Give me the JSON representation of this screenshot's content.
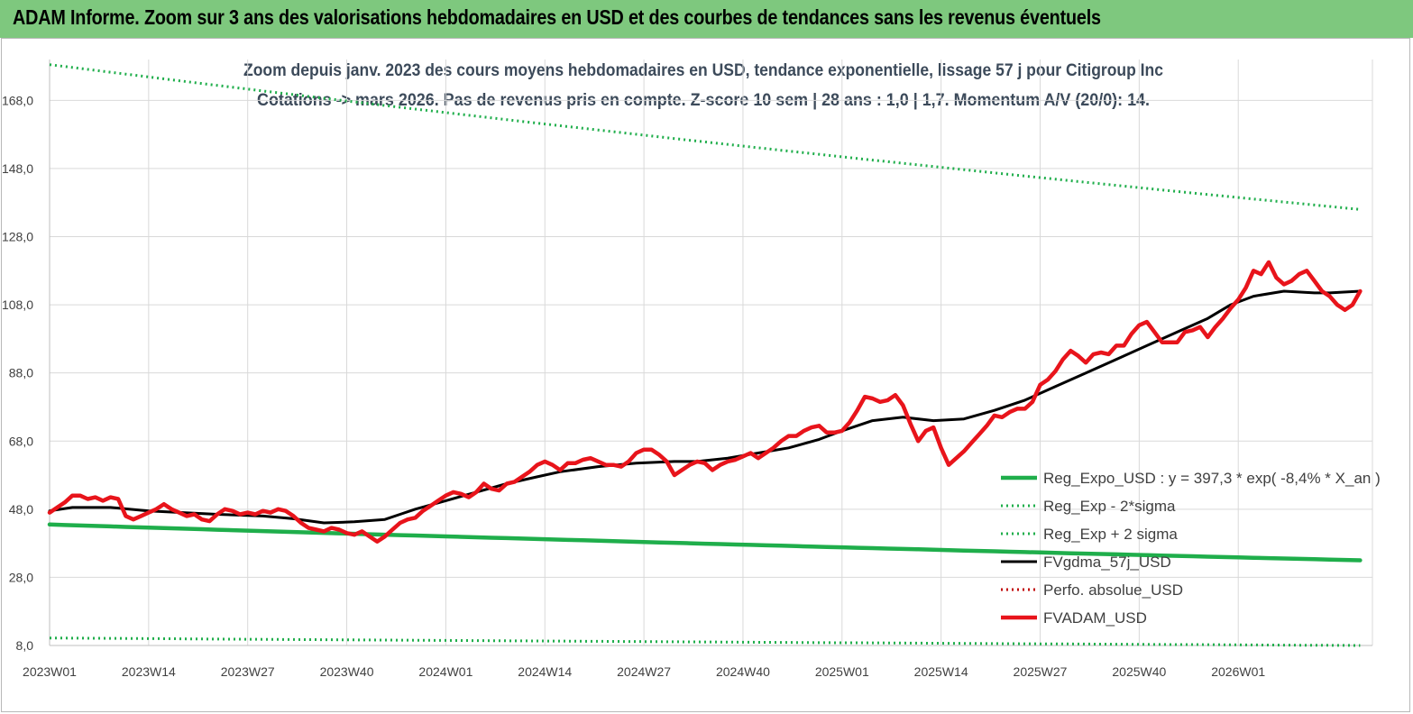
{
  "header": {
    "title": "ADAM Informe. Zoom sur 3 ans des valorisations hebdomadaires en USD et des courbes de tendances sans les revenus éventuels"
  },
  "chart_data": {
    "type": "line",
    "title_line1": "Zoom depuis janv. 2023 des cours moyens hebdomadaires en USD, tendance exponentielle, lissage 57 j pour Citigroup Inc",
    "title_line2": "Cotations -> mars 2026. Pas de revenus pris en compte. Z-score 10 sem | 28 ans : 1,0 | 1,7. Momentum A/V (20/0): 14.",
    "ylim": [
      8,
      180
    ],
    "yticks": [
      8,
      28,
      48,
      68,
      88,
      108,
      128,
      148,
      168
    ],
    "ytick_labels": [
      "8,0",
      "28,0",
      "48,0",
      "68,0",
      "88,0",
      "108,0",
      "128,0",
      "148,0",
      "168,0"
    ],
    "x_weeks_total": 164,
    "xticks": [
      {
        "week": 0,
        "label": "2023W01"
      },
      {
        "week": 13,
        "label": "2023W14"
      },
      {
        "week": 26,
        "label": "2023W27"
      },
      {
        "week": 39,
        "label": "2023W40"
      },
      {
        "week": 52,
        "label": "2024W01"
      },
      {
        "week": 65,
        "label": "2024W14"
      },
      {
        "week": 78,
        "label": "2024W27"
      },
      {
        "week": 91,
        "label": "2024W40"
      },
      {
        "week": 104,
        "label": "2025W01"
      },
      {
        "week": 117,
        "label": "2025W14"
      },
      {
        "week": 130,
        "label": "2025W27"
      },
      {
        "week": 143,
        "label": "2025W40"
      },
      {
        "week": 156,
        "label": "2026W01"
      }
    ],
    "legend_position": "bottom-right",
    "series": [
      {
        "name": "Reg_Expo_USD : y = 397,3 * exp( -8,4% *  X_an )",
        "color": "#1fae4b",
        "style": "solid-thick",
        "start": 43.5,
        "end": 33.0
      },
      {
        "name": "Reg_Exp - 2*sigma",
        "color": "#1fae4b",
        "style": "dotted",
        "start": 10.2,
        "end": 8.0
      },
      {
        "name": "Reg_Exp + 2 sigma",
        "color": "#1fae4b",
        "style": "dotted",
        "start": 178.5,
        "end": 136.0
      },
      {
        "name": "FVgdma_57j_USD",
        "color": "#000000",
        "style": "solid",
        "points": [
          [
            0,
            47.5
          ],
          [
            3,
            48.5
          ],
          [
            8,
            48.5
          ],
          [
            13,
            47.5
          ],
          [
            22,
            46.5
          ],
          [
            28,
            46.0
          ],
          [
            32,
            45.2
          ],
          [
            36,
            44.0
          ],
          [
            40,
            44.3
          ],
          [
            44,
            45.0
          ],
          [
            46,
            46.5
          ],
          [
            48,
            48.0
          ],
          [
            52,
            50.5
          ],
          [
            56,
            53.0
          ],
          [
            60,
            55.5
          ],
          [
            64,
            57.5
          ],
          [
            67,
            59.0
          ],
          [
            72,
            60.5
          ],
          [
            77,
            61.5
          ],
          [
            82,
            62.0
          ],
          [
            85,
            62.0
          ],
          [
            89,
            63.0
          ],
          [
            93,
            64.5
          ],
          [
            97,
            66.0
          ],
          [
            101,
            68.5
          ],
          [
            104,
            71.0
          ],
          [
            108,
            74.0
          ],
          [
            112,
            75.0
          ],
          [
            116,
            74.0
          ],
          [
            120,
            74.5
          ],
          [
            124,
            77.0
          ],
          [
            128,
            80.0
          ],
          [
            132,
            84.0
          ],
          [
            136,
            88.0
          ],
          [
            140,
            92.0
          ],
          [
            144,
            96.0
          ],
          [
            148,
            100.0
          ],
          [
            152,
            104.0
          ],
          [
            155,
            108.0
          ],
          [
            158,
            110.5
          ],
          [
            162,
            112.0
          ],
          [
            166,
            111.5
          ],
          [
            168,
            111.5
          ],
          [
            172,
            112.0
          ]
        ]
      },
      {
        "name": "Perfo. absolue_USD",
        "color": "#c00000",
        "style": "dotted",
        "points": []
      },
      {
        "name": "FVADAM_USD",
        "color": "#e8141b",
        "style": "solid-thick",
        "points": [
          [
            0,
            47.0
          ],
          [
            1,
            48.5
          ],
          [
            2,
            50.0
          ],
          [
            3,
            52.0
          ],
          [
            4,
            52.0
          ],
          [
            5,
            51.0
          ],
          [
            6,
            51.5
          ],
          [
            7,
            50.5
          ],
          [
            8,
            51.5
          ],
          [
            9,
            51.0
          ],
          [
            10,
            46.0
          ],
          [
            11,
            45.0
          ],
          [
            12,
            46.0
          ],
          [
            13,
            47.0
          ],
          [
            14,
            48.0
          ],
          [
            15,
            49.5
          ],
          [
            16,
            48.0
          ],
          [
            17,
            47.0
          ],
          [
            18,
            46.0
          ],
          [
            19,
            46.5
          ],
          [
            20,
            45.0
          ],
          [
            21,
            44.5
          ],
          [
            22,
            46.5
          ],
          [
            23,
            48.0
          ],
          [
            24,
            47.5
          ],
          [
            25,
            46.5
          ],
          [
            26,
            47.0
          ],
          [
            27,
            46.5
          ],
          [
            28,
            47.5
          ],
          [
            29,
            47.0
          ],
          [
            30,
            48.0
          ],
          [
            31,
            47.5
          ],
          [
            32,
            46.0
          ],
          [
            33,
            44.0
          ],
          [
            34,
            42.5
          ],
          [
            35,
            42.0
          ],
          [
            36,
            41.5
          ],
          [
            37,
            42.5
          ],
          [
            38,
            42.0
          ],
          [
            39,
            41.0
          ],
          [
            40,
            40.5
          ],
          [
            41,
            41.5
          ],
          [
            42,
            40.0
          ],
          [
            43,
            38.5
          ],
          [
            44,
            40.0
          ],
          [
            45,
            42.0
          ],
          [
            46,
            44.0
          ],
          [
            47,
            45.0
          ],
          [
            48,
            45.5
          ],
          [
            49,
            47.5
          ],
          [
            50,
            49.0
          ],
          [
            51,
            50.5
          ],
          [
            52,
            52.0
          ],
          [
            53,
            53.0
          ],
          [
            54,
            52.5
          ],
          [
            55,
            51.5
          ],
          [
            56,
            53.0
          ],
          [
            57,
            55.5
          ],
          [
            58,
            54.0
          ],
          [
            59,
            53.5
          ],
          [
            60,
            55.5
          ],
          [
            61,
            56.0
          ],
          [
            62,
            57.5
          ],
          [
            63,
            59.0
          ],
          [
            64,
            61.0
          ],
          [
            65,
            62.0
          ],
          [
            66,
            61.0
          ],
          [
            67,
            59.5
          ],
          [
            68,
            61.5
          ],
          [
            69,
            61.5
          ],
          [
            70,
            62.5
          ],
          [
            71,
            63.0
          ],
          [
            72,
            62.0
          ],
          [
            73,
            61.0
          ],
          [
            74,
            61.0
          ],
          [
            75,
            60.5
          ],
          [
            76,
            62.0
          ],
          [
            77,
            64.5
          ],
          [
            78,
            65.5
          ],
          [
            79,
            65.5
          ],
          [
            80,
            64.0
          ],
          [
            81,
            62.0
          ],
          [
            82,
            58.0
          ],
          [
            83,
            59.5
          ],
          [
            84,
            61.0
          ],
          [
            85,
            62.0
          ],
          [
            86,
            61.5
          ],
          [
            87,
            59.5
          ],
          [
            88,
            61.0
          ],
          [
            89,
            62.0
          ],
          [
            90,
            62.5
          ],
          [
            91,
            63.5
          ],
          [
            92,
            64.5
          ],
          [
            93,
            63.0
          ],
          [
            94,
            64.5
          ],
          [
            95,
            66.0
          ],
          [
            96,
            68.0
          ],
          [
            97,
            69.5
          ],
          [
            98,
            69.5
          ],
          [
            99,
            71.0
          ],
          [
            100,
            72.0
          ],
          [
            101,
            72.5
          ],
          [
            102,
            70.5
          ],
          [
            103,
            70.5
          ],
          [
            104,
            71.0
          ],
          [
            105,
            73.5
          ],
          [
            106,
            77.0
          ],
          [
            107,
            81.0
          ],
          [
            108,
            80.5
          ],
          [
            109,
            79.5
          ],
          [
            110,
            80.0
          ],
          [
            111,
            81.5
          ],
          [
            112,
            78.5
          ],
          [
            113,
            73.0
          ],
          [
            114,
            68.0
          ],
          [
            115,
            71.0
          ],
          [
            116,
            72.0
          ],
          [
            117,
            66.0
          ],
          [
            118,
            61.0
          ],
          [
            119,
            63.0
          ],
          [
            120,
            65.0
          ],
          [
            121,
            67.5
          ],
          [
            122,
            70.0
          ],
          [
            123,
            72.5
          ],
          [
            124,
            75.5
          ],
          [
            125,
            75.0
          ],
          [
            126,
            76.5
          ],
          [
            127,
            77.5
          ],
          [
            128,
            77.5
          ],
          [
            129,
            79.5
          ],
          [
            130,
            84.5
          ],
          [
            131,
            86.0
          ],
          [
            132,
            88.5
          ],
          [
            133,
            92.0
          ],
          [
            134,
            94.5
          ],
          [
            135,
            93.0
          ],
          [
            136,
            91.0
          ],
          [
            137,
            93.5
          ],
          [
            138,
            94.0
          ],
          [
            139,
            93.5
          ],
          [
            140,
            96.0
          ],
          [
            141,
            96.0
          ],
          [
            142,
            99.5
          ],
          [
            143,
            102.0
          ],
          [
            144,
            103.0
          ],
          [
            145,
            100.0
          ],
          [
            146,
            97.0
          ],
          [
            147,
            97.0
          ],
          [
            148,
            97.0
          ],
          [
            149,
            100.0
          ],
          [
            150,
            100.5
          ],
          [
            151,
            101.5
          ],
          [
            152,
            98.5
          ],
          [
            153,
            101.5
          ],
          [
            154,
            104.0
          ],
          [
            155,
            107.0
          ],
          [
            156,
            109.5
          ],
          [
            157,
            113.0
          ],
          [
            158,
            118.0
          ],
          [
            159,
            117.0
          ],
          [
            160,
            120.5
          ],
          [
            161,
            116.0
          ],
          [
            162,
            114.0
          ],
          [
            163,
            115.0
          ],
          [
            164,
            117.0
          ],
          [
            165,
            118.0
          ],
          [
            166,
            115.0
          ],
          [
            167,
            112.0
          ],
          [
            168,
            110.5
          ],
          [
            169,
            108.0
          ],
          [
            170,
            106.5
          ],
          [
            171,
            108.0
          ],
          [
            172,
            112.0
          ]
        ]
      }
    ]
  }
}
